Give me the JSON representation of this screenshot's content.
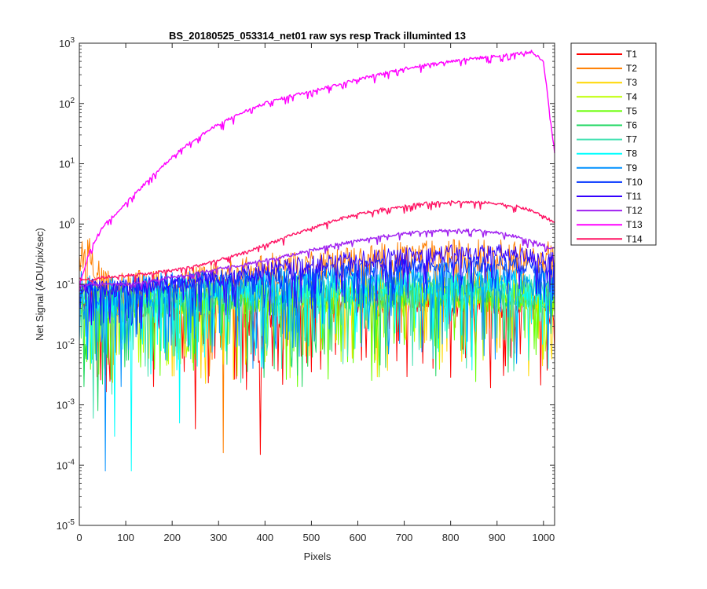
{
  "chart_data": {
    "type": "line",
    "title": "BS_20180525_053314_net01   raw sys resp    Track illuminted 13",
    "xlabel": "Pixels",
    "ylabel": "Net Signal (ADU/pix/sec)",
    "xlim": [
      0,
      1024
    ],
    "ylim": [
      1e-05,
      1000
    ],
    "yscale": "log",
    "x_ticks": [
      0,
      100,
      200,
      300,
      400,
      500,
      600,
      700,
      800,
      900,
      1000
    ],
    "y_ticks": [
      {
        "value": 1e-05,
        "base": "10",
        "exp": "-5"
      },
      {
        "value": 0.0001,
        "base": "10",
        "exp": "-4"
      },
      {
        "value": 0.001,
        "base": "10",
        "exp": "-3"
      },
      {
        "value": 0.01,
        "base": "10",
        "exp": "-2"
      },
      {
        "value": 0.1,
        "base": "10",
        "exp": "-1"
      },
      {
        "value": 1,
        "base": "10",
        "exp": "0"
      },
      {
        "value": 10,
        "base": "10",
        "exp": "1"
      },
      {
        "value": 100,
        "base": "10",
        "exp": "2"
      },
      {
        "value": 1000,
        "base": "10",
        "exp": "3"
      }
    ],
    "grid": false,
    "legend_position": "outside-top-right",
    "x": [
      0,
      25,
      50,
      100,
      150,
      200,
      250,
      300,
      350,
      400,
      450,
      500,
      550,
      600,
      650,
      700,
      750,
      800,
      850,
      900,
      950,
      975,
      1000,
      1024
    ],
    "series": [
      {
        "name": "T1",
        "color": "#ff0000",
        "values": [
          0.05,
          0.05,
          0.03,
          0.05,
          0.04,
          0.045,
          0.04,
          0.05,
          0.045,
          0.03,
          0.04,
          0.045,
          0.05,
          0.05,
          0.055,
          0.055,
          0.05,
          0.055,
          0.05,
          0.05,
          0.045,
          0.04,
          0.04,
          0.04
        ],
        "dips": [
          [
            160,
            0.002
          ],
          [
            250,
            0.0004
          ],
          [
            390,
            0.00015
          ],
          [
            630,
            0.01
          ],
          [
            930,
            0.006
          ]
        ]
      },
      {
        "name": "T2",
        "color": "#ff7f00",
        "values": [
          0.3,
          0.35,
          0.09,
          0.09,
          0.09,
          0.1,
          0.11,
          0.13,
          0.15,
          0.17,
          0.19,
          0.21,
          0.23,
          0.24,
          0.26,
          0.27,
          0.28,
          0.3,
          0.3,
          0.3,
          0.28,
          0.28,
          0.3,
          0.35
        ],
        "dips": [
          [
            310,
            0.00016
          ],
          [
            280,
            0.003
          ]
        ]
      },
      {
        "name": "T3",
        "color": "#ffd700",
        "values": [
          0.06,
          0.06,
          0.05,
          0.055,
          0.055,
          0.06,
          0.06,
          0.06,
          0.065,
          0.065,
          0.065,
          0.07,
          0.07,
          0.07,
          0.075,
          0.075,
          0.075,
          0.075,
          0.075,
          0.075,
          0.07,
          0.07,
          0.065,
          0.065
        ],
        "dips": [
          [
            200,
            0.003
          ]
        ]
      },
      {
        "name": "T4",
        "color": "#bfff00",
        "values": [
          0.06,
          0.06,
          0.05,
          0.055,
          0.055,
          0.06,
          0.06,
          0.06,
          0.06,
          0.06,
          0.06,
          0.065,
          0.065,
          0.065,
          0.07,
          0.07,
          0.07,
          0.07,
          0.07,
          0.07,
          0.065,
          0.065,
          0.06,
          0.06
        ],
        "dips": [
          [
            340,
            0.003
          ],
          [
            590,
            0.006
          ]
        ]
      },
      {
        "name": "T5",
        "color": "#66ff00",
        "values": [
          0.06,
          0.05,
          0.04,
          0.045,
          0.045,
          0.05,
          0.05,
          0.055,
          0.055,
          0.055,
          0.055,
          0.06,
          0.06,
          0.06,
          0.065,
          0.065,
          0.065,
          0.065,
          0.065,
          0.065,
          0.06,
          0.06,
          0.055,
          0.055
        ],
        "dips": [
          [
            470,
            0.002
          ],
          [
            590,
            0.005
          ],
          [
            700,
            0.01
          ]
        ]
      },
      {
        "name": "T6",
        "color": "#1ed760",
        "values": [
          0.06,
          0.06,
          0.05,
          0.05,
          0.055,
          0.06,
          0.06,
          0.06,
          0.065,
          0.065,
          0.065,
          0.07,
          0.07,
          0.07,
          0.075,
          0.075,
          0.075,
          0.075,
          0.075,
          0.075,
          0.07,
          0.07,
          0.065,
          0.065
        ],
        "dips": [
          [
            10,
            0.002
          ],
          [
            40,
            0.0008
          ],
          [
            480,
            0.002
          ]
        ]
      },
      {
        "name": "T7",
        "color": "#40e0b0",
        "values": [
          0.07,
          0.06,
          0.05,
          0.055,
          0.06,
          0.065,
          0.065,
          0.07,
          0.07,
          0.07,
          0.075,
          0.075,
          0.08,
          0.08,
          0.08,
          0.085,
          0.085,
          0.085,
          0.085,
          0.085,
          0.08,
          0.08,
          0.075,
          0.075
        ],
        "dips": [
          [
            30,
            0.0006
          ],
          [
            70,
            0.0015
          ]
        ]
      },
      {
        "name": "T8",
        "color": "#00ffff",
        "values": [
          0.08,
          0.07,
          0.06,
          0.065,
          0.07,
          0.075,
          0.075,
          0.08,
          0.08,
          0.085,
          0.09,
          0.09,
          0.095,
          0.095,
          0.1,
          0.1,
          0.1,
          0.1,
          0.1,
          0.1,
          0.095,
          0.095,
          0.09,
          0.09
        ],
        "dips": [
          [
            75,
            0.0003
          ],
          [
            112,
            8e-05
          ],
          [
            215,
            0.0005
          ]
        ]
      },
      {
        "name": "T9",
        "color": "#0090ff",
        "values": [
          0.09,
          0.08,
          0.07,
          0.075,
          0.08,
          0.085,
          0.09,
          0.095,
          0.1,
          0.1,
          0.11,
          0.11,
          0.115,
          0.12,
          0.12,
          0.125,
          0.125,
          0.13,
          0.13,
          0.13,
          0.125,
          0.12,
          0.12,
          0.12
        ],
        "dips": [
          [
            56,
            8e-05
          ],
          [
            90,
            0.002
          ]
        ]
      },
      {
        "name": "T10",
        "color": "#0033ff",
        "values": [
          0.1,
          0.09,
          0.08,
          0.09,
          0.095,
          0.1,
          0.11,
          0.12,
          0.13,
          0.14,
          0.15,
          0.16,
          0.17,
          0.18,
          0.19,
          0.2,
          0.21,
          0.21,
          0.22,
          0.22,
          0.21,
          0.2,
          0.2,
          0.2
        ],
        "dips": []
      },
      {
        "name": "T11",
        "color": "#3300ff",
        "values": [
          0.1,
          0.09,
          0.08,
          0.09,
          0.1,
          0.11,
          0.12,
          0.13,
          0.15,
          0.17,
          0.19,
          0.21,
          0.23,
          0.25,
          0.27,
          0.29,
          0.3,
          0.32,
          0.33,
          0.33,
          0.3,
          0.28,
          0.26,
          0.24
        ],
        "dips": []
      },
      {
        "name": "T12",
        "color": "#a020f0",
        "values": [
          0.09,
          0.1,
          0.1,
          0.1,
          0.11,
          0.13,
          0.15,
          0.18,
          0.21,
          0.25,
          0.3,
          0.37,
          0.45,
          0.53,
          0.62,
          0.7,
          0.75,
          0.78,
          0.78,
          0.72,
          0.6,
          0.52,
          0.45,
          0.38
        ],
        "dips": []
      },
      {
        "name": "T13",
        "color": "#ff00ff",
        "values": [
          0.1,
          0.4,
          0.9,
          2.2,
          5.5,
          13,
          26,
          45,
          70,
          100,
          130,
          160,
          200,
          250,
          310,
          380,
          440,
          500,
          560,
          610,
          680,
          720,
          500,
          15
        ],
        "dips": []
      },
      {
        "name": "T14",
        "color": "#ff1464",
        "values": [
          0.12,
          0.12,
          0.13,
          0.14,
          0.15,
          0.17,
          0.2,
          0.25,
          0.32,
          0.45,
          0.62,
          0.85,
          1.15,
          1.45,
          1.75,
          2.0,
          2.2,
          2.3,
          2.3,
          2.2,
          1.9,
          1.65,
          1.35,
          1.05
        ],
        "dips": []
      }
    ]
  }
}
